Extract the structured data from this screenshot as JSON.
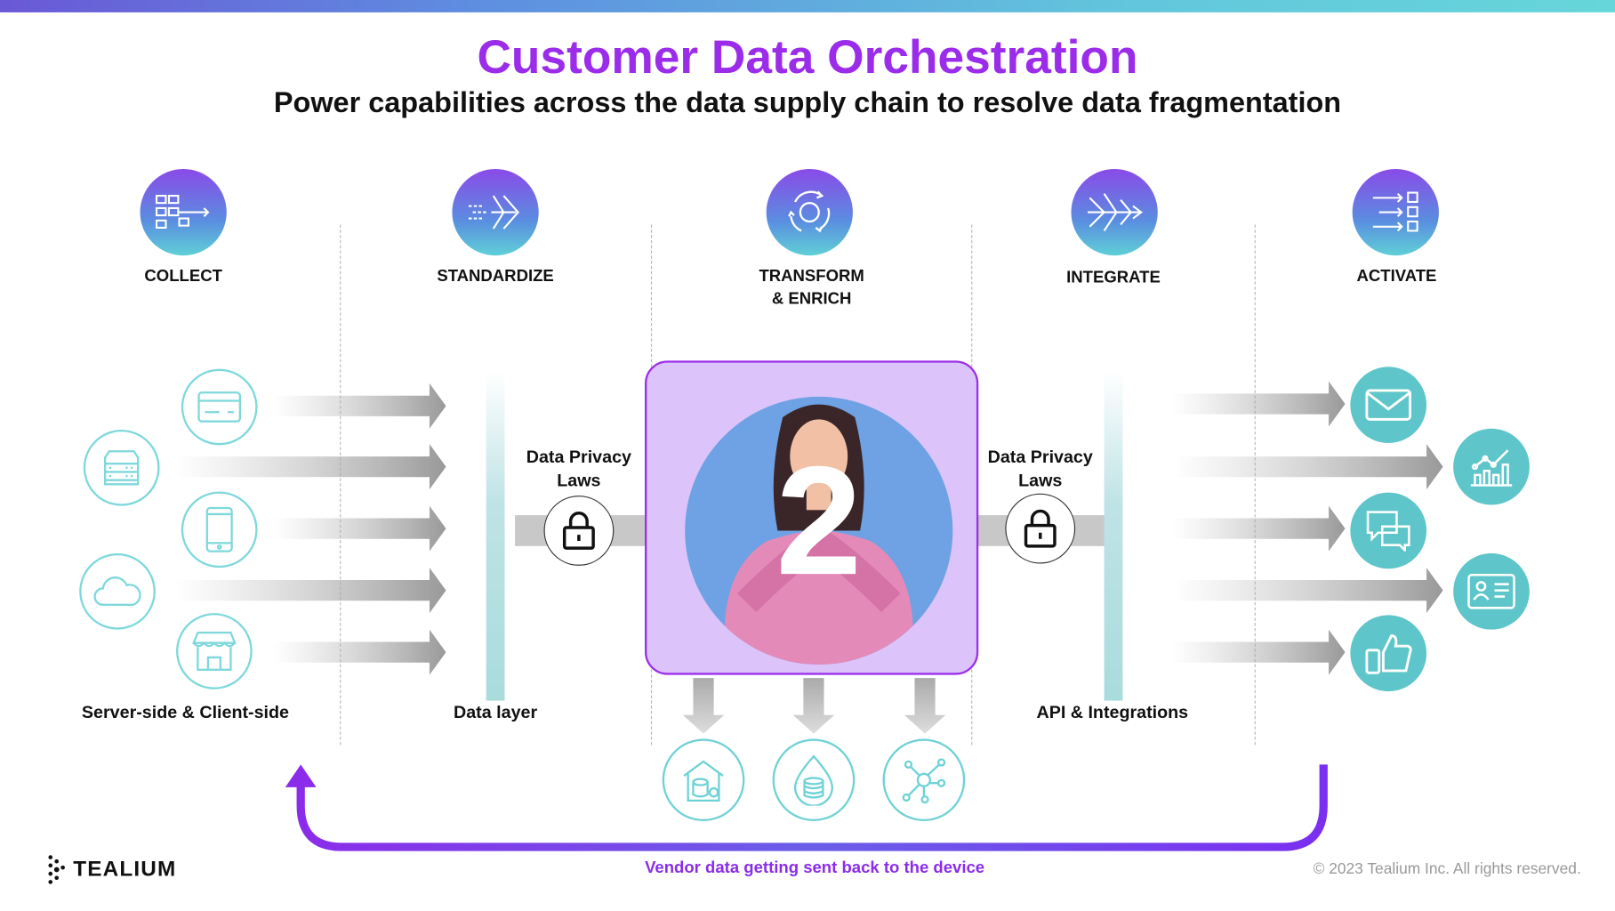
{
  "header": {
    "title": "Customer Data Orchestration",
    "subtitle": "Power capabilities across the data supply chain to resolve data fragmentation"
  },
  "stages": [
    {
      "label": "COLLECT",
      "icon": "flow-chart-icon"
    },
    {
      "label": "STANDARDIZE",
      "icon": "converge-arrow-icon"
    },
    {
      "label": "TRANSFORM\n& ENRICH",
      "line1": "TRANSFORM",
      "line2": "& ENRICH",
      "icon": "cycle-icon"
    },
    {
      "label": "INTEGRATE",
      "icon": "merge-arrows-icon"
    },
    {
      "label": "ACTIVATE",
      "icon": "distribute-icon"
    }
  ],
  "sources": {
    "label": "Server-side & Client-side",
    "icons": [
      "credit-card-icon",
      "server-icon",
      "mobile-phone-icon",
      "cloud-icon",
      "store-icon"
    ]
  },
  "data_layer": {
    "label": "Data layer"
  },
  "privacy_left": {
    "line1": "Data Privacy",
    "line2": "Laws"
  },
  "privacy_right": {
    "line1": "Data Privacy",
    "line2": "Laws"
  },
  "center": {
    "number": "2"
  },
  "integrations": {
    "label": "API & Integrations"
  },
  "destinations": {
    "icons": [
      "email-icon",
      "analytics-chart-icon",
      "chat-icon",
      "id-card-icon",
      "thumbs-up-icon"
    ]
  },
  "storage": {
    "icons": [
      "data-warehouse-icon",
      "data-lake-icon",
      "network-icon"
    ]
  },
  "footer": {
    "logo": "TEALIUM",
    "feedback": "Vendor data getting sent back to the device",
    "copyright": "© 2023  Tealium Inc. All rights reserved."
  },
  "colors": {
    "title": "#9a2cea",
    "teal": "#5ec6ca",
    "purple": "#7b2ff0",
    "box": "#dcc4fa"
  }
}
